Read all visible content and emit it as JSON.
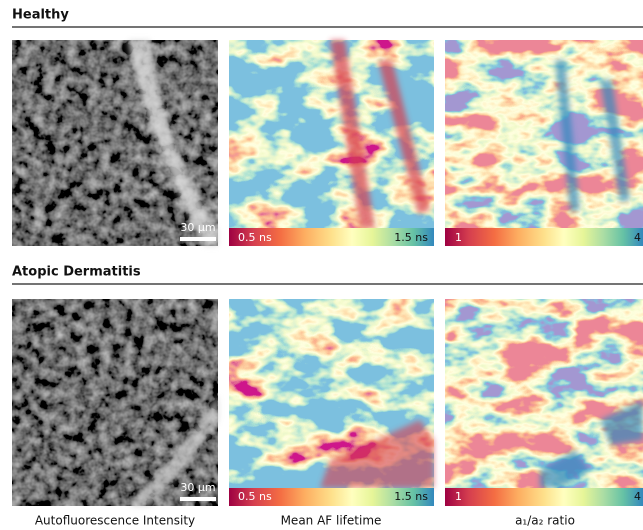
{
  "sections": [
    {
      "title": "Healthy",
      "scale_bar": "30 µm",
      "colorbars": [
        {
          "min": "0.5 ns",
          "max": "1.5 ns"
        },
        {
          "min": "1",
          "max": "4"
        }
      ]
    },
    {
      "title": "Atopic Dermatitis",
      "scale_bar": "30 µm",
      "colorbars": [
        {
          "min": "0.5 ns",
          "max": "1.5 ns"
        },
        {
          "min": "1",
          "max": "4"
        }
      ]
    }
  ],
  "captions": [
    "Autofluorescence Intensity",
    "Mean AF lifetime",
    "a₁/a₂ ratio"
  ]
}
